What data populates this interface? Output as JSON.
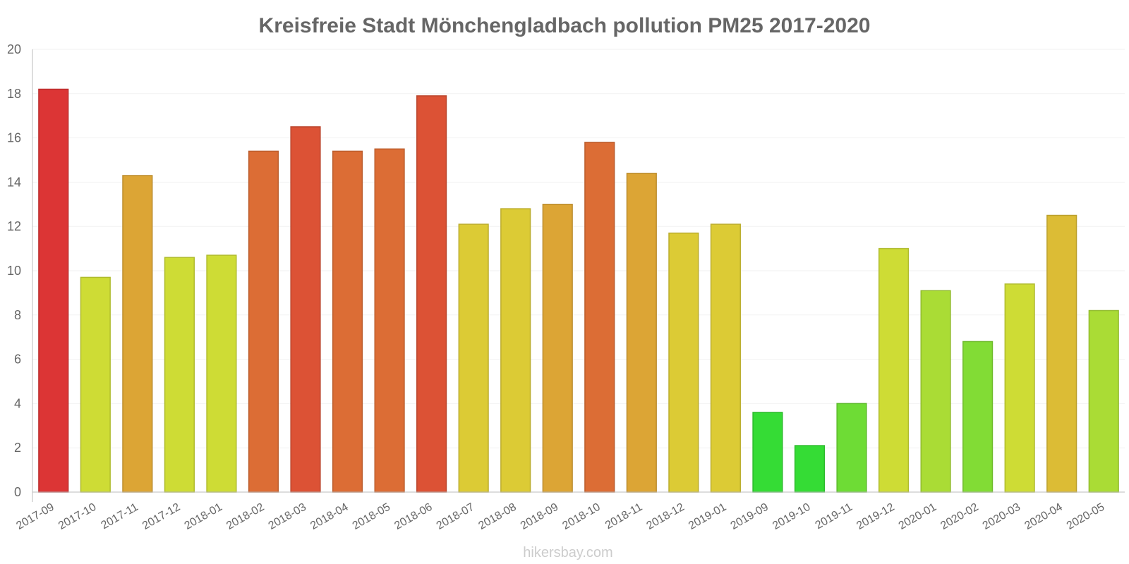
{
  "chart_data": {
    "type": "bar",
    "title": "Kreisfreie Stadt Mönchengladbach pollution PM25 2017-2020",
    "xlabel": "",
    "ylabel": "",
    "ylim": [
      0,
      20
    ],
    "yticks": [
      0,
      2,
      4,
      6,
      8,
      10,
      12,
      14,
      16,
      18,
      20
    ],
    "grid": true,
    "categories": [
      "2017-09",
      "2017-10",
      "2017-11",
      "2017-12",
      "2018-01",
      "2018-02",
      "2018-03",
      "2018-04",
      "2018-05",
      "2018-06",
      "2018-07",
      "2018-08",
      "2018-09",
      "2018-10",
      "2018-11",
      "2018-12",
      "2019-01",
      "2019-09",
      "2019-10",
      "2019-11",
      "2019-12",
      "2020-01",
      "2020-02",
      "2020-03",
      "2020-04",
      "2020-05"
    ],
    "values": [
      18.2,
      9.7,
      14.3,
      10.6,
      10.7,
      15.4,
      16.5,
      15.4,
      15.5,
      17.9,
      12.1,
      12.8,
      13.0,
      15.8,
      14.4,
      11.7,
      12.1,
      3.6,
      2.1,
      4.0,
      11.0,
      9.1,
      6.8,
      9.4,
      12.5,
      8.2
    ],
    "colors": [
      "#dc3535",
      "#cedc35",
      "#dca535",
      "#cedc35",
      "#cedc35",
      "#dc6d35",
      "#dc5235",
      "#dc6d35",
      "#dc6d35",
      "#dc5235",
      "#dccb35",
      "#dccb35",
      "#dca535",
      "#dc6d35",
      "#dca535",
      "#dccb35",
      "#dccb35",
      "#35dc35",
      "#35dc35",
      "#6edc35",
      "#cedc35",
      "#aadc35",
      "#82dc35",
      "#cedc35",
      "#dcbc35",
      "#aadc35"
    ]
  },
  "watermark": "hikersbay.com"
}
